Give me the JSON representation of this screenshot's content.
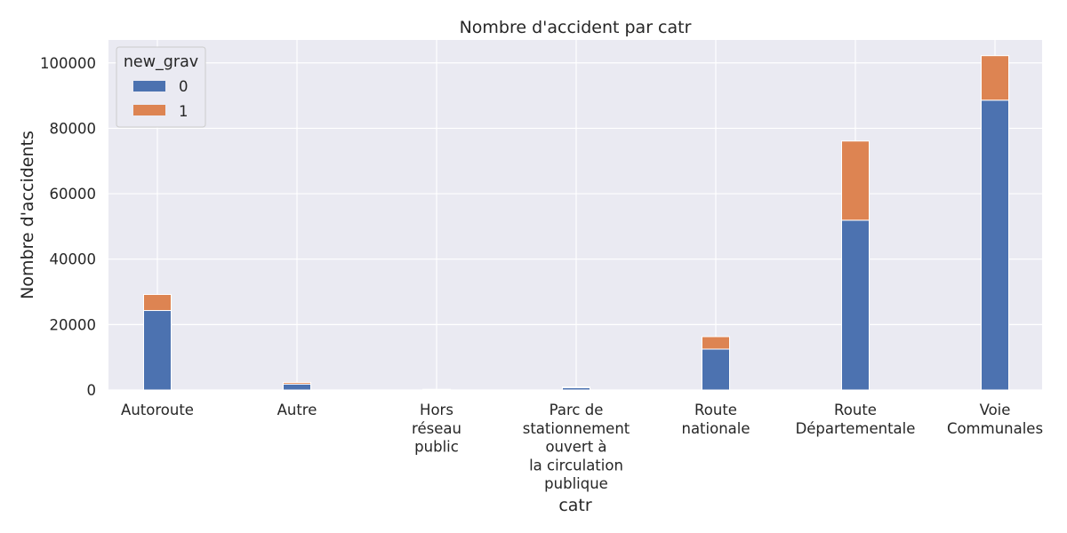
{
  "chart_data": {
    "type": "bar",
    "stacked": true,
    "title": "Nombre d'accident par catr",
    "xlabel": "catr",
    "ylabel": "Nombre d'accidents",
    "categories": [
      [
        "Autoroute"
      ],
      [
        "Autre"
      ],
      [
        "Hors",
        "réseau",
        "public"
      ],
      [
        "Parc de",
        "stationnement",
        "ouvert à",
        "la circulation",
        "publique"
      ],
      [
        "Route",
        "nationale"
      ],
      [
        "Route",
        "Départementale"
      ],
      [
        "Voie",
        "Communales"
      ]
    ],
    "series": [
      {
        "name": "0",
        "color": "#4c72b0",
        "values": [
          24300,
          1800,
          150,
          700,
          12500,
          51900,
          88600
        ]
      },
      {
        "name": "1",
        "color": "#dd8452",
        "values": [
          4900,
          500,
          50,
          200,
          3800,
          24200,
          13600
        ]
      }
    ],
    "ylim": [
      0,
      107000
    ],
    "yticks": [
      0,
      20000,
      40000,
      60000,
      80000,
      100000
    ],
    "grid": true,
    "legend": {
      "title": "new_grav",
      "placement": "top-left"
    }
  }
}
